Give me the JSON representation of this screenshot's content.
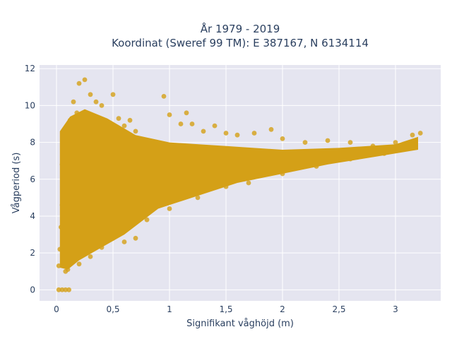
{
  "chart_data": {
    "type": "scatter",
    "title": [
      "År 1979 - 2019",
      "Koordinat (Sweref 99 TM): E 387167, N 6134114"
    ],
    "xlabel": "Signifikant våghöjd (m)",
    "ylabel": "Vågperiod (s)",
    "xlim": [
      -0.15,
      3.4
    ],
    "ylim": [
      -0.6,
      12.2
    ],
    "x_ticks": [
      0,
      0.5,
      1,
      1.5,
      2,
      2.5,
      3
    ],
    "x_tick_labels": [
      "0",
      "0,5",
      "1",
      "1,5",
      "2",
      "2,5",
      "3"
    ],
    "y_ticks": [
      0,
      2,
      4,
      6,
      8,
      10,
      12
    ],
    "y_tick_labels": [
      "0",
      "2",
      "4",
      "6",
      "8",
      "10",
      "12"
    ],
    "grid": true,
    "marker_color": "#D4A017",
    "background_color": "#E5E5F0",
    "points": [
      {
        "x": 0.02,
        "y": 1.3
      },
      {
        "x": 0.03,
        "y": 2.2
      },
      {
        "x": 0.04,
        "y": 3.4
      },
      {
        "x": 0.05,
        "y": 4.6
      },
      {
        "x": 0.06,
        "y": 5.5
      },
      {
        "x": 0.05,
        "y": 6.8
      },
      {
        "x": 0.06,
        "y": 8.2
      },
      {
        "x": 0.08,
        "y": 1.0
      },
      {
        "x": 0.1,
        "y": 2.5
      },
      {
        "x": 0.12,
        "y": 9.2
      },
      {
        "x": 0.15,
        "y": 10.2
      },
      {
        "x": 0.18,
        "y": 9.6
      },
      {
        "x": 0.2,
        "y": 11.2
      },
      {
        "x": 0.25,
        "y": 11.4
      },
      {
        "x": 0.3,
        "y": 10.6
      },
      {
        "x": 0.35,
        "y": 10.2
      },
      {
        "x": 0.4,
        "y": 10.0
      },
      {
        "x": 0.5,
        "y": 10.6
      },
      {
        "x": 0.55,
        "y": 9.3
      },
      {
        "x": 0.6,
        "y": 8.9
      },
      {
        "x": 0.65,
        "y": 9.2
      },
      {
        "x": 0.7,
        "y": 8.6
      },
      {
        "x": 0.8,
        "y": 8.0
      },
      {
        "x": 0.95,
        "y": 10.5
      },
      {
        "x": 1.0,
        "y": 9.5
      },
      {
        "x": 1.1,
        "y": 9.0
      },
      {
        "x": 1.15,
        "y": 9.6
      },
      {
        "x": 1.2,
        "y": 9.0
      },
      {
        "x": 1.3,
        "y": 8.6
      },
      {
        "x": 1.4,
        "y": 8.9
      },
      {
        "x": 1.5,
        "y": 8.5
      },
      {
        "x": 1.6,
        "y": 8.4
      },
      {
        "x": 1.75,
        "y": 8.5
      },
      {
        "x": 1.9,
        "y": 8.7
      },
      {
        "x": 2.0,
        "y": 8.2
      },
      {
        "x": 2.2,
        "y": 8.0
      },
      {
        "x": 2.4,
        "y": 8.1
      },
      {
        "x": 2.6,
        "y": 8.0
      },
      {
        "x": 2.8,
        "y": 7.8
      },
      {
        "x": 3.0,
        "y": 8.0
      },
      {
        "x": 3.15,
        "y": 8.4
      },
      {
        "x": 3.22,
        "y": 8.5
      },
      {
        "x": 3.15,
        "y": 7.7
      },
      {
        "x": 2.9,
        "y": 7.4
      },
      {
        "x": 2.6,
        "y": 7.1
      },
      {
        "x": 2.3,
        "y": 6.7
      },
      {
        "x": 2.0,
        "y": 6.3
      },
      {
        "x": 1.7,
        "y": 5.8
      },
      {
        "x": 1.5,
        "y": 5.6
      },
      {
        "x": 1.25,
        "y": 5.0
      },
      {
        "x": 1.0,
        "y": 4.4
      },
      {
        "x": 0.8,
        "y": 3.8
      },
      {
        "x": 0.7,
        "y": 2.8
      },
      {
        "x": 0.6,
        "y": 2.6
      },
      {
        "x": 0.5,
        "y": 2.8
      },
      {
        "x": 0.4,
        "y": 2.3
      },
      {
        "x": 0.3,
        "y": 1.8
      },
      {
        "x": 0.2,
        "y": 1.4
      },
      {
        "x": 0.1,
        "y": 1.1
      },
      {
        "x": 0.02,
        "y": 0.0
      },
      {
        "x": 0.05,
        "y": 0.0
      },
      {
        "x": 0.08,
        "y": 0.0
      },
      {
        "x": 0.11,
        "y": 0.0
      },
      {
        "x": 0.3,
        "y": 5.5
      },
      {
        "x": 0.5,
        "y": 6.2
      },
      {
        "x": 0.8,
        "y": 6.8
      },
      {
        "x": 1.2,
        "y": 7.0
      },
      {
        "x": 1.6,
        "y": 7.0
      },
      {
        "x": 2.0,
        "y": 7.2
      },
      {
        "x": 2.4,
        "y": 7.3
      },
      {
        "x": 0.2,
        "y": 7.5
      },
      {
        "x": 0.4,
        "y": 8.5
      },
      {
        "x": 0.15,
        "y": 4.0
      },
      {
        "x": 0.25,
        "y": 3.0
      },
      {
        "x": 0.6,
        "y": 4.5
      },
      {
        "x": 0.9,
        "y": 5.5
      },
      {
        "x": 1.1,
        "y": 6.2
      },
      {
        "x": 1.4,
        "y": 6.3
      }
    ]
  }
}
